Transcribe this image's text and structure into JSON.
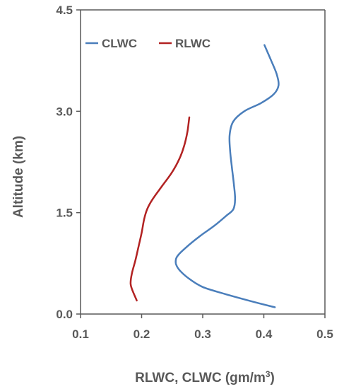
{
  "chart_data": {
    "type": "line",
    "title": "",
    "xlabel": "RLWC, CLWC (gm/m",
    "xlabel_sup": "3",
    "xlabel_end": ")",
    "ylabel": "Altitude (km)",
    "xlim": [
      0.1,
      0.5
    ],
    "ylim": [
      0.0,
      4.5
    ],
    "x_ticks": [
      "0.1",
      "0.2",
      "0.3",
      "0.4",
      "0.5"
    ],
    "y_ticks": [
      "0.0",
      "1.5",
      "3.0",
      "4.5"
    ],
    "grid": false,
    "legend_position": "top-left",
    "series": [
      {
        "name": "CLWC",
        "color": "#4a7ebb",
        "points": [
          [
            0.401,
            3.98
          ],
          [
            0.412,
            3.75
          ],
          [
            0.421,
            3.55
          ],
          [
            0.424,
            3.38
          ],
          [
            0.416,
            3.25
          ],
          [
            0.395,
            3.12
          ],
          [
            0.368,
            3.0
          ],
          [
            0.35,
            2.85
          ],
          [
            0.344,
            2.65
          ],
          [
            0.345,
            2.4
          ],
          [
            0.348,
            2.15
          ],
          [
            0.351,
            1.92
          ],
          [
            0.353,
            1.7
          ],
          [
            0.35,
            1.55
          ],
          [
            0.338,
            1.45
          ],
          [
            0.318,
            1.3
          ],
          [
            0.295,
            1.15
          ],
          [
            0.272,
            0.98
          ],
          [
            0.258,
            0.85
          ],
          [
            0.256,
            0.75
          ],
          [
            0.262,
            0.65
          ],
          [
            0.278,
            0.52
          ],
          [
            0.3,
            0.4
          ],
          [
            0.335,
            0.3
          ],
          [
            0.375,
            0.2
          ],
          [
            0.418,
            0.1
          ]
        ]
      },
      {
        "name": "RLWC",
        "color": "#b22222",
        "points": [
          [
            0.278,
            2.91
          ],
          [
            0.275,
            2.7
          ],
          [
            0.27,
            2.5
          ],
          [
            0.262,
            2.3
          ],
          [
            0.25,
            2.1
          ],
          [
            0.234,
            1.9
          ],
          [
            0.218,
            1.7
          ],
          [
            0.209,
            1.55
          ],
          [
            0.204,
            1.4
          ],
          [
            0.2,
            1.2
          ],
          [
            0.195,
            1.0
          ],
          [
            0.19,
            0.8
          ],
          [
            0.184,
            0.6
          ],
          [
            0.182,
            0.45
          ],
          [
            0.185,
            0.35
          ],
          [
            0.192,
            0.2
          ]
        ]
      }
    ]
  }
}
